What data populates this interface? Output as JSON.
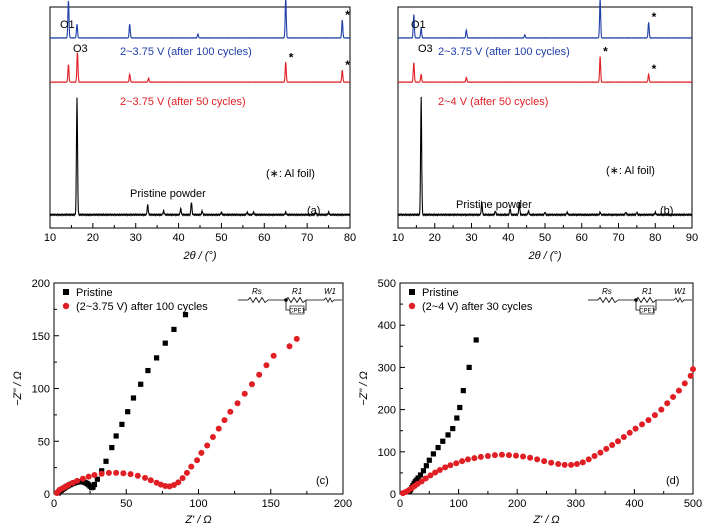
{
  "colors": {
    "blue": "#1f3fa8",
    "red": "#e01e24",
    "black": "#000000"
  },
  "chart_data": [
    {
      "id": "a",
      "type": "line",
      "panel_label": "(a)",
      "xlabel": "2θ / (°)",
      "xlim": [
        10,
        80
      ],
      "xticks": [
        10,
        20,
        30,
        40,
        50,
        60,
        70,
        80
      ],
      "annotations": {
        "o1": "O1",
        "o3": "O3",
        "note": "(∗: Al foil)",
        "pristine": "Pristine powder"
      },
      "series": [
        {
          "name": "2~3.75 V (after 100 cycles)",
          "color": "#1f3fa8",
          "offset": 0.86,
          "base": 0.07,
          "peaks": [
            [
              14.3,
              0.95
            ],
            [
              16.3,
              0.35
            ],
            [
              28.6,
              0.35
            ],
            [
              44.5,
              0.1
            ],
            [
              65.0,
              1.0
            ],
            [
              78.2,
              0.45
            ]
          ],
          "stars": [
            65.0,
            78.2
          ]
        },
        {
          "name": "2~3.75 V (after 50 cycles)",
          "color": "#e01e24",
          "offset": 0.66,
          "base": 0.07,
          "peaks": [
            [
              14.3,
              0.45
            ],
            [
              16.4,
              0.75
            ],
            [
              28.6,
              0.2
            ],
            [
              33.0,
              0.1
            ],
            [
              65.0,
              0.5
            ],
            [
              78.2,
              0.3
            ]
          ],
          "stars": [
            65.0,
            78.2
          ]
        },
        {
          "name": "Pristine powder",
          "color": "#000000",
          "offset": 0.06,
          "base": 0.0,
          "peaks": [
            [
              16.3,
              0.95
            ],
            [
              32.8,
              0.08
            ],
            [
              36.5,
              0.03
            ],
            [
              40.5,
              0.05
            ],
            [
              43.0,
              0.1
            ],
            [
              45.5,
              0.03
            ],
            [
              50.0,
              0.02
            ],
            [
              56.0,
              0.02
            ],
            [
              57.5,
              0.02
            ],
            [
              65.0,
              0.02
            ],
            [
              72.0,
              0.02
            ],
            [
              75.0,
              0.02
            ]
          ],
          "stars": []
        }
      ]
    },
    {
      "id": "b",
      "type": "line",
      "panel_label": "(b)",
      "xlabel": "2θ / (°)",
      "xlim": [
        10,
        90
      ],
      "xticks": [
        10,
        20,
        30,
        40,
        50,
        60,
        70,
        80,
        90
      ],
      "annotations": {
        "o1": "O1",
        "o3": "O3",
        "note": "(∗: Al foil)",
        "pristine": "Pristine powder"
      },
      "series": [
        {
          "name": "2~3.75 V (after 100 cycles)",
          "color": "#1f3fa8",
          "offset": 0.86,
          "base": 0.06,
          "peaks": [
            [
              14.3,
              0.6
            ],
            [
              16.3,
              0.25
            ],
            [
              28.6,
              0.2
            ],
            [
              44.5,
              0.08
            ],
            [
              65.0,
              1.0
            ],
            [
              78.2,
              0.4
            ]
          ],
          "stars": [
            65.0,
            78.2
          ]
        },
        {
          "name": "2~4 V (after 50 cycles)",
          "color": "#e01e24",
          "offset": 0.66,
          "base": 0.06,
          "peaks": [
            [
              14.3,
              0.5
            ],
            [
              16.3,
              0.2
            ],
            [
              28.6,
              0.12
            ],
            [
              65.0,
              0.65
            ],
            [
              78.2,
              0.2
            ]
          ],
          "stars": [
            65.0,
            78.2
          ]
        },
        {
          "name": "Pristine powder",
          "color": "#000000",
          "offset": 0.06,
          "base": 0.0,
          "peaks": [
            [
              16.3,
              0.95
            ],
            [
              32.8,
              0.1
            ],
            [
              36.5,
              0.03
            ],
            [
              40.5,
              0.05
            ],
            [
              43.0,
              0.1
            ],
            [
              45.5,
              0.03
            ],
            [
              50.0,
              0.02
            ],
            [
              56.0,
              0.02
            ],
            [
              65.0,
              0.02
            ],
            [
              72.0,
              0.02
            ],
            [
              75.0,
              0.02
            ],
            [
              80.0,
              0.02
            ]
          ],
          "stars": []
        }
      ]
    },
    {
      "id": "c",
      "type": "scatter",
      "panel_label": "(c)",
      "xlabel": "Z' / Ω",
      "ylabel": "−Z\" / Ω",
      "xlim": [
        0,
        200
      ],
      "ylim": [
        0,
        200
      ],
      "xticks": [
        0,
        50,
        100,
        150,
        200
      ],
      "yticks": [
        0,
        50,
        100,
        150,
        200
      ],
      "legend_position": "top-left",
      "circuit": {
        "rs": "Rs",
        "r1": "R1",
        "w1": "W1",
        "cpe": "CPE1"
      },
      "series": [
        {
          "name": "Pristine",
          "marker": "square",
          "color": "#000000",
          "points": [
            [
              3,
              1
            ],
            [
              4,
              2.5
            ],
            [
              5,
              3.5
            ],
            [
              6,
              4.5
            ],
            [
              7,
              5.5
            ],
            [
              8,
              6.5
            ],
            [
              9,
              7.3
            ],
            [
              10,
              8
            ],
            [
              11,
              8.8
            ],
            [
              12,
              9.4
            ],
            [
              13,
              10
            ],
            [
              14,
              10.5
            ],
            [
              15,
              11
            ],
            [
              16,
              11.3
            ],
            [
              17,
              11.5
            ],
            [
              18,
              11.7
            ],
            [
              19,
              11.8
            ],
            [
              20,
              11.6
            ],
            [
              21,
              11.2
            ],
            [
              22,
              10.6
            ],
            [
              23,
              9.8
            ],
            [
              24,
              8.7
            ],
            [
              25,
              7.4
            ],
            [
              26,
              6
            ],
            [
              27,
              6.5
            ],
            [
              28,
              9
            ],
            [
              30,
              14
            ],
            [
              33,
              22
            ],
            [
              36,
              31
            ],
            [
              40,
              44
            ],
            [
              43,
              55
            ],
            [
              47,
              66
            ],
            [
              51,
              78
            ],
            [
              55,
              91
            ],
            [
              60,
              104
            ],
            [
              65,
              117
            ],
            [
              71,
              129
            ],
            [
              77,
              143
            ],
            [
              83,
              156
            ],
            [
              91,
              170
            ]
          ]
        },
        {
          "name": "(2~3.75 V) after 100 cycles",
          "marker": "circle",
          "color": "#e01e24",
          "points": [
            [
              2,
              1
            ],
            [
              3,
              2.5
            ],
            [
              4,
              4
            ],
            [
              6,
              5.5
            ],
            [
              8,
              7
            ],
            [
              10,
              8.5
            ],
            [
              13,
              10.5
            ],
            [
              16,
              12.5
            ],
            [
              20,
              14.5
            ],
            [
              24,
              16.5
            ],
            [
              28,
              18
            ],
            [
              33,
              19.2
            ],
            [
              38,
              20
            ],
            [
              43,
              20
            ],
            [
              48,
              19.7
            ],
            [
              53,
              18.8
            ],
            [
              58,
              17.3
            ],
            [
              63,
              15.3
            ],
            [
              67,
              13
            ],
            [
              71,
              10.7
            ],
            [
              74,
              8.9
            ],
            [
              77,
              7.6
            ],
            [
              80,
              7.2
            ],
            [
              83,
              8.5
            ],
            [
              86,
              11
            ],
            [
              89,
              15
            ],
            [
              92,
              20
            ],
            [
              95,
              26
            ],
            [
              99,
              32
            ],
            [
              102,
              39
            ],
            [
              106,
              46
            ],
            [
              110,
              54
            ],
            [
              114,
              62
            ],
            [
              118,
              70
            ],
            [
              122,
              78
            ],
            [
              127,
              86
            ],
            [
              132,
              95
            ],
            [
              137,
              104
            ],
            [
              142,
              113
            ],
            [
              147,
              122
            ],
            [
              152,
              131
            ],
            [
              163,
              140
            ],
            [
              168,
              147
            ]
          ]
        }
      ]
    },
    {
      "id": "d",
      "type": "scatter",
      "panel_label": "(d)",
      "xlabel": "Z' / Ω",
      "ylabel": "−Z\" / Ω",
      "xlim": [
        0,
        500
      ],
      "ylim": [
        0,
        500
      ],
      "xticks": [
        0,
        100,
        200,
        300,
        400,
        500
      ],
      "yticks": [
        0,
        100,
        200,
        300,
        400,
        500
      ],
      "legend_position": "top-left",
      "circuit": {
        "rs": "Rs",
        "r1": "R1",
        "w1": "W1",
        "cpe": "CPE1"
      },
      "series": [
        {
          "name": "Pristine",
          "marker": "square",
          "color": "#000000",
          "points": [
            [
              16,
              5
            ],
            [
              18,
              10
            ],
            [
              20,
              15
            ],
            [
              22,
              20
            ],
            [
              24,
              25
            ],
            [
              26,
              29
            ],
            [
              28,
              33
            ],
            [
              31,
              38
            ],
            [
              35,
              45
            ],
            [
              40,
              55
            ],
            [
              45,
              67
            ],
            [
              50,
              80
            ],
            [
              57,
              95
            ],
            [
              65,
              110
            ],
            [
              73,
              125
            ],
            [
              82,
              140
            ],
            [
              90,
              155
            ],
            [
              97,
              180
            ],
            [
              102,
              205
            ],
            [
              108,
              245
            ],
            [
              118,
              300
            ],
            [
              130,
              365
            ]
          ]
        },
        {
          "name": "(2~4 V) after 30 cycles",
          "marker": "circle",
          "color": "#e01e24",
          "points": [
            [
              5,
              2
            ],
            [
              10,
              5
            ],
            [
              15,
              9
            ],
            [
              20,
              14
            ],
            [
              25,
              19
            ],
            [
              30,
              24
            ],
            [
              37,
              30
            ],
            [
              44,
              37
            ],
            [
              52,
              44
            ],
            [
              60,
              51
            ],
            [
              68,
              57
            ],
            [
              77,
              63
            ],
            [
              86,
              68
            ],
            [
              96,
              73
            ],
            [
              106,
              78
            ],
            [
              116,
              82
            ],
            [
              127,
              85
            ],
            [
              138,
              88
            ],
            [
              150,
              90
            ],
            [
              162,
              92
            ],
            [
              174,
              93
            ],
            [
              186,
              92
            ],
            [
              198,
              91
            ],
            [
              210,
              89
            ],
            [
              222,
              86
            ],
            [
              234,
              82
            ],
            [
              246,
              78
            ],
            [
              258,
              74
            ],
            [
              270,
              71
            ],
            [
              281,
              69
            ],
            [
              292,
              69
            ],
            [
              302,
              71
            ],
            [
              312,
              75
            ],
            [
              322,
              82
            ],
            [
              332,
              90
            ],
            [
              342,
              98
            ],
            [
              352,
              107
            ],
            [
              362,
              116
            ],
            [
              372,
              125
            ],
            [
              382,
              135
            ],
            [
              392,
              145
            ],
            [
              402,
              155
            ],
            [
              413,
              165
            ],
            [
              424,
              175
            ],
            [
              435,
              187
            ],
            [
              446,
              200
            ],
            [
              456,
              215
            ],
            [
              466,
              230
            ],
            [
              476,
              245
            ],
            [
              486,
              262
            ],
            [
              496,
              280
            ],
            [
              500,
              296
            ]
          ]
        }
      ]
    }
  ]
}
